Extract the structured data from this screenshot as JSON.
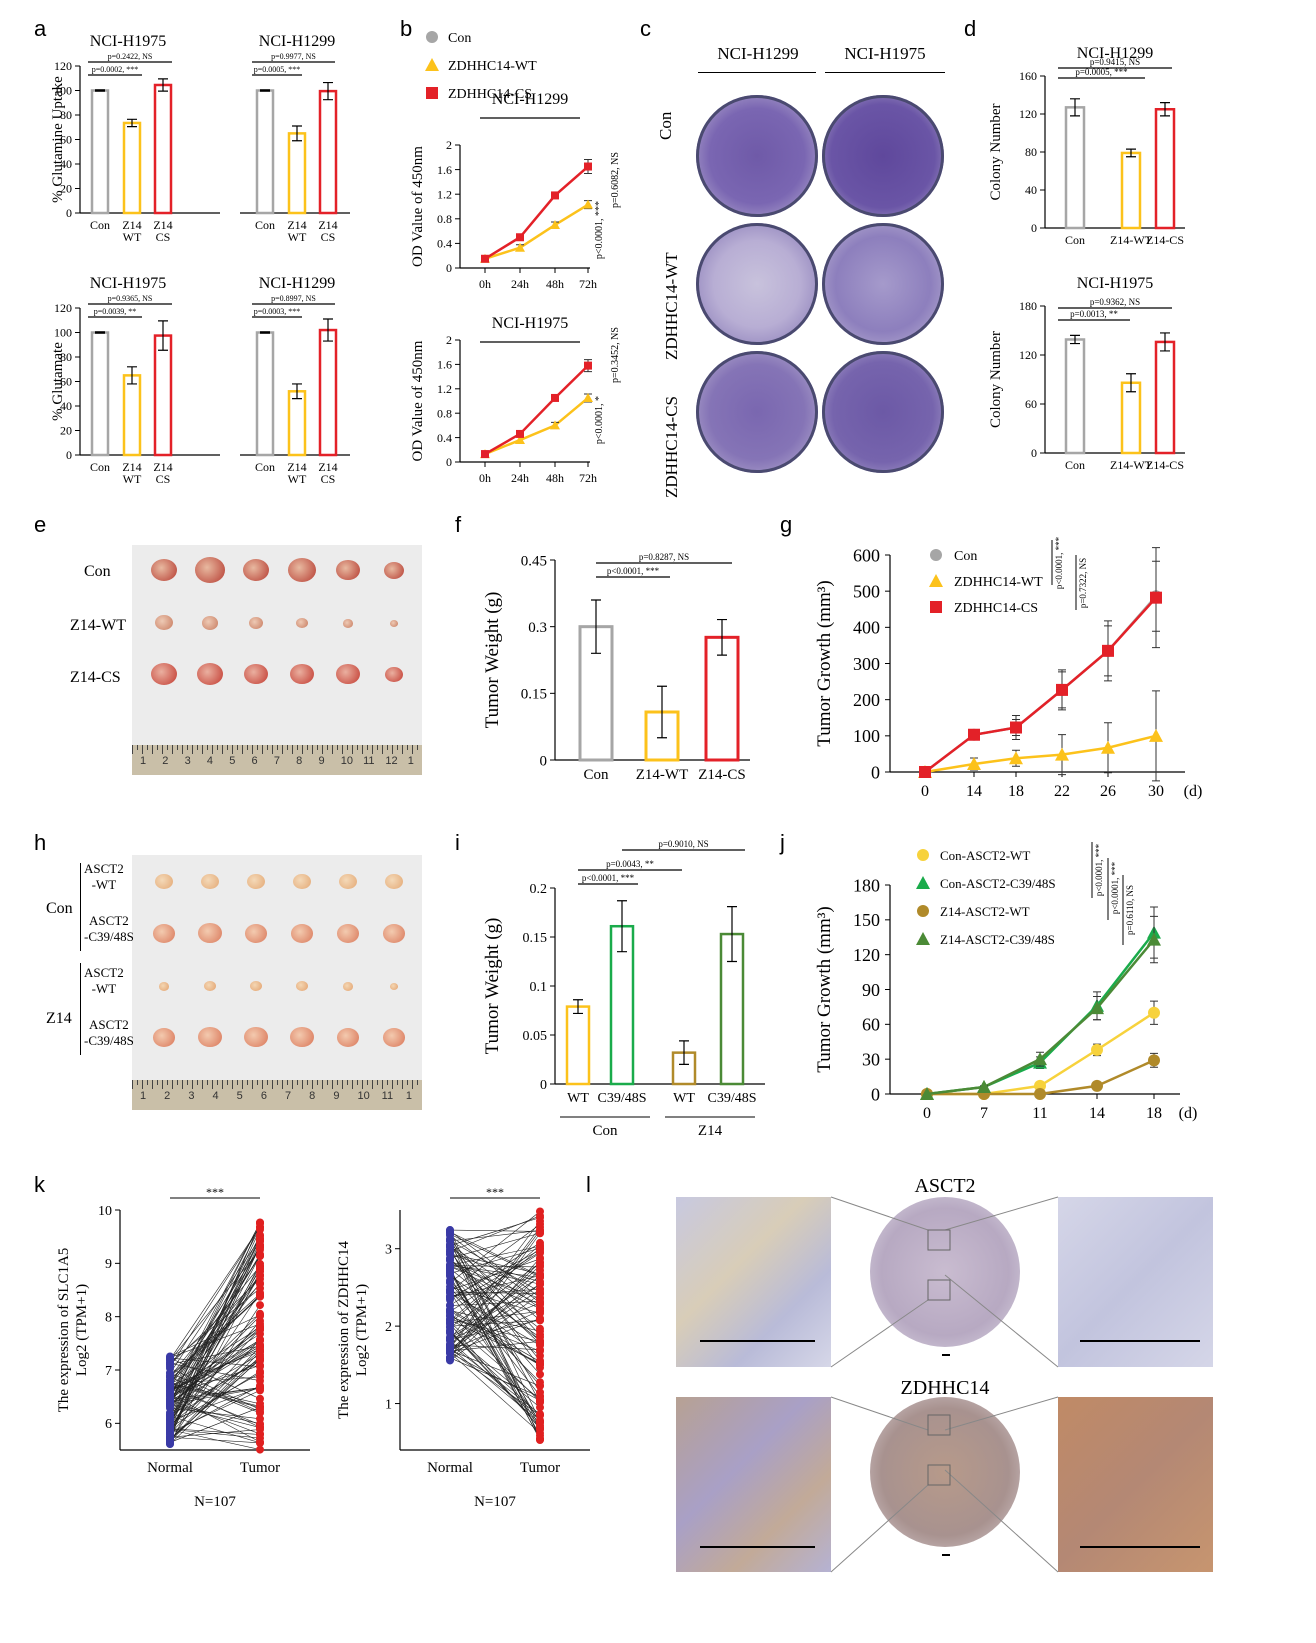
{
  "panel_labels": {
    "a": "a",
    "b": "b",
    "c": "c",
    "d": "d",
    "e": "e",
    "f": "f",
    "g": "g",
    "h": "h",
    "i": "i",
    "j": "j",
    "k": "k",
    "l": "l"
  },
  "colors": {
    "gray": "#a6a6a6",
    "yellow": "#fcc21b",
    "red": "#e32128",
    "green": "#1aab4b",
    "olive": "#b08a2a",
    "darkgreen": "#4b8a36",
    "navy": "#3a3aa6",
    "dotred": "#e02020"
  },
  "panel_c": {
    "columns": [
      "NCI-H1299",
      "NCI-H1975"
    ],
    "rows": [
      "Con",
      "ZDHHC14-WT",
      "ZDHHC14-CS"
    ]
  },
  "panel_e": {
    "rows": [
      "Con",
      "Z14-WT",
      "Z14-CS"
    ],
    "ruler": [
      "1",
      "2",
      "3",
      "4",
      "5",
      "6",
      "7",
      "8",
      "9",
      "10",
      "11",
      "12",
      "1"
    ]
  },
  "panel_h": {
    "groups": [
      "Con",
      "Z14"
    ],
    "rows": [
      "ASCT2\n-WT",
      "ASCT2\n-C39/48S",
      "ASCT2\n-WT",
      "ASCT2\n-C39/48S"
    ],
    "ruler": [
      "1",
      "2",
      "3",
      "4",
      "5",
      "6",
      "7",
      "8",
      "9",
      "10",
      "11",
      "1"
    ]
  },
  "panel_l": {
    "titles": [
      "ASCT2",
      "ZDHHC14"
    ]
  },
  "chart_data": [
    {
      "id": "a1",
      "type": "bar",
      "title": "NCI-H1975",
      "ylabel": "% Glutamine Uptake",
      "ylim": [
        0,
        120
      ],
      "yticks": [
        0,
        20,
        40,
        60,
        80,
        100,
        120
      ],
      "categories": [
        "Con",
        "Z14\nWT",
        "Z14\nCS"
      ],
      "values": [
        100,
        73.5,
        104.5
      ],
      "errors": [
        0.5,
        3,
        5
      ],
      "annotations": [
        "p=0.0002, ***",
        "p=0.2422, NS"
      ]
    },
    {
      "id": "a2",
      "type": "bar",
      "title": "NCI-H1299",
      "ylim": [
        0,
        120
      ],
      "categories": [
        "Con",
        "Z14\nWT",
        "Z14\nCS"
      ],
      "values": [
        100,
        65,
        99.5
      ],
      "errors": [
        0.5,
        6,
        7
      ],
      "annotations": [
        "p=0.0005, ***",
        "p=0.9977, NS"
      ]
    },
    {
      "id": "a3",
      "type": "bar",
      "title": "NCI-H1975",
      "ylabel": "% Glutamate",
      "ylim": [
        0,
        120
      ],
      "yticks": [
        0,
        20,
        40,
        60,
        80,
        100,
        120
      ],
      "categories": [
        "Con",
        "Z14\nWT",
        "Z14\nCS"
      ],
      "values": [
        100,
        65,
        97.5
      ],
      "errors": [
        0.5,
        7,
        12
      ],
      "annotations": [
        "p=0.0039, **",
        "p=0.9365, NS"
      ]
    },
    {
      "id": "a4",
      "type": "bar",
      "title": "NCI-H1299",
      "ylim": [
        0,
        120
      ],
      "categories": [
        "Con",
        "Z14\nWT",
        "Z14\nCS"
      ],
      "values": [
        100,
        52,
        102
      ],
      "errors": [
        0.5,
        6,
        9
      ],
      "annotations": [
        "p=0.0003, ***",
        "p=0.8997, NS"
      ]
    },
    {
      "id": "b1",
      "type": "line",
      "title": "NCI-H1299",
      "ylabel": "OD Value of 450nm",
      "ylim": [
        0,
        2
      ],
      "yticks": [
        0,
        0.4,
        0.8,
        1.2,
        1.6,
        2
      ],
      "x": [
        "0h",
        "24h",
        "48h",
        "72h"
      ],
      "series": [
        {
          "name": "ZDHHC14-WT",
          "values": [
            0.15,
            0.33,
            0.7,
            1.03
          ]
        },
        {
          "name": "ZDHHC14-CS",
          "values": [
            0.15,
            0.5,
            1.18,
            1.65
          ]
        },
        {
          "name": "Con",
          "values": [
            0.15,
            0.5,
            1.18,
            1.65
          ]
        }
      ],
      "legend": [
        "Con",
        "ZDHHC14-WT",
        "ZDHHC14-CS"
      ],
      "annotations": [
        "p<0.0001, ***",
        "p=0.6082, NS"
      ]
    },
    {
      "id": "b2",
      "type": "line",
      "title": "NCI-H1975",
      "ylabel": "OD Value of 450nm",
      "ylim": [
        0,
        2
      ],
      "yticks": [
        0,
        0.4,
        0.8,
        1.2,
        1.6,
        2
      ],
      "x": [
        "0h",
        "24h",
        "48h",
        "72h"
      ],
      "series": [
        {
          "name": "ZDHHC14-WT",
          "values": [
            0.13,
            0.36,
            0.6,
            1.05
          ]
        },
        {
          "name": "ZDHHC14-CS",
          "values": [
            0.13,
            0.46,
            1.05,
            1.58
          ]
        },
        {
          "name": "Con",
          "values": [
            0.13,
            0.46,
            1.05,
            1.58
          ]
        }
      ],
      "annotations": [
        "p<0.0001, *",
        "p=0.3452, NS"
      ]
    },
    {
      "id": "d1",
      "type": "bar",
      "title": "NCI-H1299",
      "ylabel": "Colony Number",
      "ylim": [
        0,
        160
      ],
      "yticks": [
        0,
        40,
        80,
        120,
        160
      ],
      "categories": [
        "Con",
        "Z14-WT",
        "Z14-CS"
      ],
      "values": [
        127,
        79,
        125
      ],
      "errors": [
        9,
        4,
        7
      ],
      "annotations": [
        "p=0.0005, ***",
        "p=0.9415, NS"
      ]
    },
    {
      "id": "d2",
      "type": "bar",
      "title": "NCI-H1975",
      "ylabel": "Colony Number",
      "ylim": [
        0,
        180
      ],
      "yticks": [
        0,
        60,
        120,
        180
      ],
      "categories": [
        "Con",
        "Z14-WT",
        "Z14-CS"
      ],
      "values": [
        139,
        86,
        136
      ],
      "errors": [
        5,
        11,
        11
      ],
      "annotations": [
        "p=0.0013, **",
        "p=0.9362, NS"
      ]
    },
    {
      "id": "f",
      "type": "bar",
      "ylabel": "Tumor Weight (g)",
      "ylim": [
        0,
        0.45
      ],
      "yticks": [
        "0",
        "0.15",
        "0.3",
        "0.45"
      ],
      "categories": [
        "Con",
        "Z14-WT",
        "Z14-CS"
      ],
      "values": [
        0.3,
        0.108,
        0.276
      ],
      "errors": [
        0.06,
        0.058,
        0.04
      ],
      "annotations": [
        "p<0.0001, ***",
        "p=0.8287, NS"
      ]
    },
    {
      "id": "g",
      "type": "line",
      "ylabel": "Tumor Growth (mm³)",
      "ylim": [
        0,
        600
      ],
      "yticks": [
        0,
        100,
        200,
        300,
        400,
        500,
        600
      ],
      "x": [
        "0",
        "14",
        "18",
        "22",
        "26",
        "30"
      ],
      "xunit": "(d)",
      "series": [
        {
          "name": "Con",
          "values": [
            0,
            103,
            123,
            227,
            335,
            486
          ]
        },
        {
          "name": "ZDHHC14-WT",
          "values": [
            0,
            22,
            38,
            48,
            67,
            100
          ]
        },
        {
          "name": "ZDHHC14-CS",
          "values": [
            0,
            103,
            123,
            227,
            335,
            482
          ]
        }
      ],
      "annotations": [
        "p<0.0001, ***",
        "p=0.7322, NS"
      ]
    },
    {
      "id": "i",
      "type": "bar",
      "ylabel": "Tumor Weight (g)",
      "ylim": [
        0,
        0.2
      ],
      "yticks": [
        "0",
        "0.05",
        "0.1",
        "0.15",
        "0.2"
      ],
      "categories": [
        "WT",
        "C39/48S",
        "WT",
        "C39/48S"
      ],
      "groups": [
        "Con",
        "Z14"
      ],
      "values": [
        0.079,
        0.161,
        0.032,
        0.153
      ],
      "errors": [
        0.007,
        0.026,
        0.012,
        0.028
      ],
      "annotations": [
        "p<0.0001, ***",
        "p=0.0043, **",
        "p=0.9010, NS"
      ]
    },
    {
      "id": "j",
      "type": "line",
      "ylabel": "Tumor Growth (mm³)",
      "ylim": [
        0,
        180
      ],
      "yticks": [
        0,
        30,
        60,
        90,
        120,
        150,
        180
      ],
      "x": [
        "0",
        "7",
        "11",
        "14",
        "18"
      ],
      "xunit": "(d)",
      "series": [
        {
          "name": "Con-ASCT2-WT",
          "values": [
            0,
            0,
            7,
            38,
            70
          ]
        },
        {
          "name": "Con-ASCT2-C39/48S",
          "values": [
            0,
            6,
            27,
            76,
            139
          ]
        },
        {
          "name": "Z14-ASCT2-WT",
          "values": [
            0,
            0,
            0,
            7,
            29
          ]
        },
        {
          "name": "Z14-ASCT2-C39/48S",
          "values": [
            0,
            6,
            30,
            74,
            133
          ]
        }
      ],
      "annotations": [
        "p<0.0001, ***",
        "p<0.0001, ***",
        "p=0.6110, NS"
      ]
    },
    {
      "id": "k1",
      "type": "scatter",
      "ylabel": "The expression of SLC1A5",
      "ylabel2": "Log2 (TPM+1)",
      "ylim": [
        5.5,
        10
      ],
      "yticks": [
        "6",
        "7",
        "8",
        "9",
        "10"
      ],
      "categories": [
        "Normal",
        "Tumor"
      ],
      "n": "N=107",
      "sig": "***",
      "normal_range": [
        5.6,
        7.3
      ],
      "tumor_range": [
        5.5,
        9.8
      ]
    },
    {
      "id": "k2",
      "type": "scatter",
      "ylabel": "The expression of ZDHHC14",
      "ylabel2": "Log2 (TPM+1)",
      "ylim": [
        0.4,
        3.5
      ],
      "yticks": [
        "1",
        "2",
        "3"
      ],
      "categories": [
        "Normal",
        "Tumor"
      ],
      "n": "N=107",
      "sig": "***",
      "normal_range": [
        1.5,
        3.25
      ],
      "tumor_range": [
        0.5,
        3.55
      ]
    }
  ]
}
